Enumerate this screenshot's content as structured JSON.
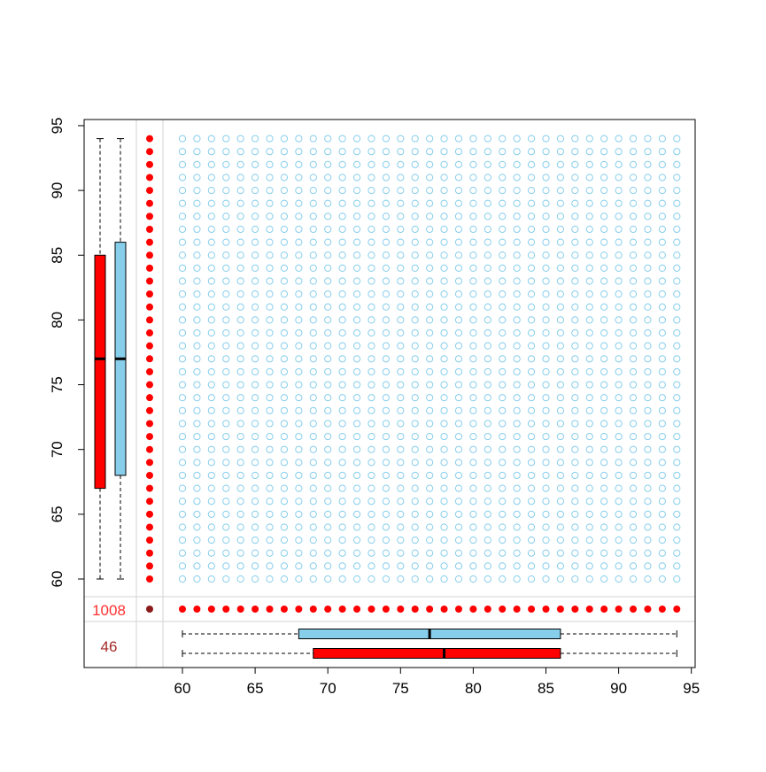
{
  "chart_data": {
    "type": "scatter",
    "title": "",
    "xlabel": "",
    "ylabel": "",
    "xlim": [
      60,
      95
    ],
    "ylim": [
      60,
      95
    ],
    "x_ticks": [
      "60",
      "65",
      "70",
      "75",
      "80",
      "85",
      "90",
      "95"
    ],
    "y_ticks": [
      "60",
      "65",
      "70",
      "75",
      "80",
      "85",
      "90",
      "95"
    ],
    "scatter_grid": {
      "x_range": [
        60,
        94
      ],
      "y_range": [
        60,
        94
      ],
      "step": 1,
      "marker": "open-circle",
      "color": "#87ceeb"
    },
    "y_missing_markers": {
      "y_range": [
        60,
        94
      ],
      "step": 1,
      "color": "#ff0000"
    },
    "x_missing_markers": {
      "x_range": [
        60,
        94
      ],
      "step": 1,
      "color": "#ff0000"
    },
    "corner_marker_color": "#8b1a1a",
    "missing_counts": {
      "both_missing_label": "1008",
      "both_missing_color": "#ff3030",
      "y_count_label": "46",
      "y_count_color": "#a52a2a"
    },
    "y_boxplots": [
      {
        "name": "red",
        "color": "#ff0000",
        "min": 60,
        "q1": 67,
        "median": 77,
        "q3": 85,
        "max": 94
      },
      {
        "name": "blue",
        "color": "#87ceeb",
        "min": 60,
        "q1": 68,
        "median": 77,
        "q3": 86,
        "max": 94
      }
    ],
    "x_boxplots": [
      {
        "name": "blue",
        "color": "#87ceeb",
        "min": 60,
        "q1": 68,
        "median": 77,
        "q3": 86,
        "max": 94
      },
      {
        "name": "red",
        "color": "#ff0000",
        "min": 60,
        "q1": 69,
        "median": 78,
        "q3": 86,
        "max": 94
      }
    ],
    "grid": false
  }
}
